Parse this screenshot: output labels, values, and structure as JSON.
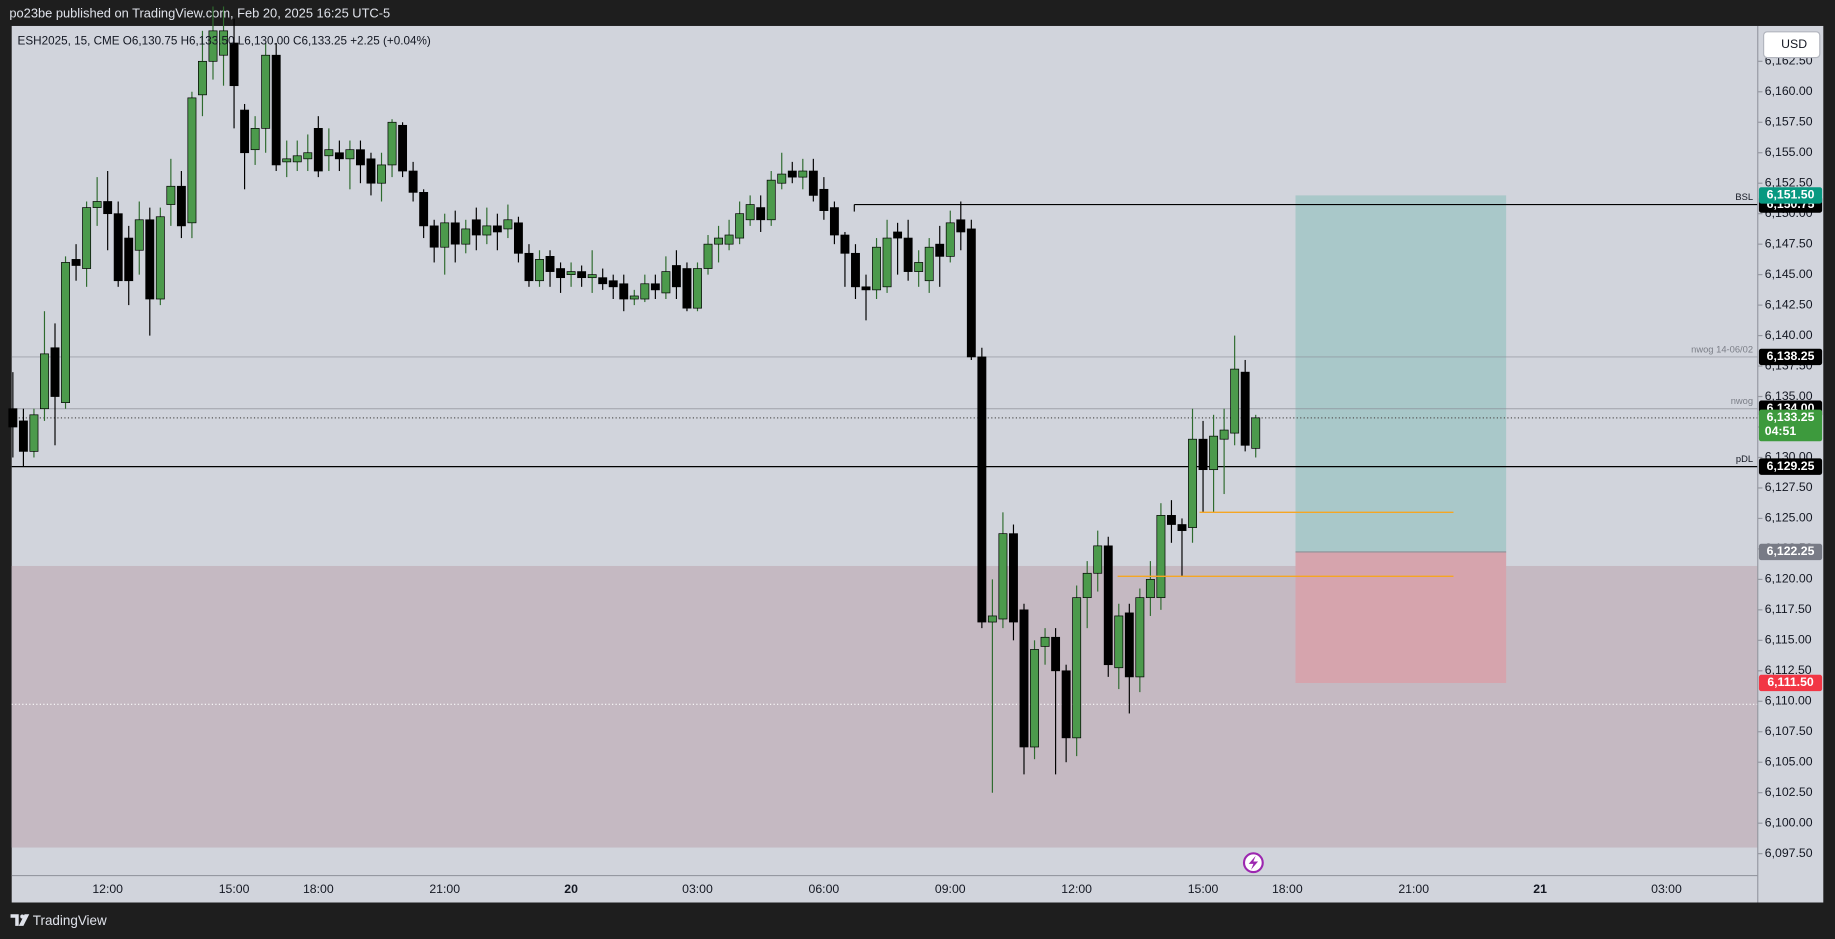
{
  "chart_data": {
    "type": "candlestick",
    "header": "po23be published on TradingView.com, Feb 20, 2025 16:25 UTC-5",
    "legend": "ESH2025, 15, CME  O6,130.75  H6,133.50  L6,130.00  C6,133.25  +2.25 (+0.04%)",
    "currency": "USD",
    "footer": "TradingView",
    "up_color": "#4c9a4c",
    "down_color": "#000000",
    "categories": [
      null,
      null,
      null,
      null,
      null,
      null,
      null,
      null,
      null,
      "12:00",
      null,
      null,
      null,
      null,
      null,
      null,
      null,
      null,
      null,
      null,
      null,
      "15:00",
      null,
      null,
      null,
      null,
      null,
      null,
      null,
      "18:00",
      null,
      null,
      null,
      null,
      null,
      null,
      null,
      null,
      null,
      null,
      null,
      "21:00",
      null,
      null,
      null,
      null,
      null,
      null,
      null,
      null,
      null,
      null,
      null,
      "20",
      null,
      null,
      null,
      null,
      null,
      null,
      null,
      null,
      null,
      null,
      null,
      "03:00",
      null,
      null,
      null,
      null,
      null,
      null,
      null,
      null,
      null,
      null,
      null,
      "06:00",
      null,
      null,
      null,
      null,
      null,
      null,
      null,
      null,
      null,
      null,
      null,
      "09:00",
      null,
      null,
      null,
      null,
      null,
      null,
      null,
      null,
      null,
      null,
      null,
      "12:00",
      null,
      null,
      null,
      null,
      null,
      null,
      null,
      null,
      null,
      null,
      null,
      "15:00",
      null,
      null,
      null,
      null,
      null,
      null,
      null,
      "18:00",
      null,
      null,
      null,
      null,
      null,
      null,
      null,
      null,
      null,
      null,
      null,
      "21:00",
      null,
      null,
      null,
      null,
      null,
      null,
      null,
      null,
      null,
      null,
      null,
      "21",
      null,
      null,
      null,
      null,
      null,
      null,
      null,
      null,
      null,
      null,
      null,
      "03:00",
      null,
      null,
      null,
      null,
      null,
      null,
      null,
      null
    ],
    "open": [
      6134,
      6133,
      6130.5,
      6134,
      6139,
      6134.5,
      6146.25,
      6145.5,
      6150.5,
      6151,
      6150,
      6148,
      6147,
      6149.5,
      6143,
      6150.75,
      6152.25,
      6149.25,
      6159.75,
      6162.5,
      6163,
      6164,
      6158.5,
      6155.25,
      6157,
      6163,
      6154.25,
      6154.25,
      6154.5,
      6157,
      6154.75,
      6155,
      6154.5,
      6155.25,
      6154.5,
      6152.5,
      6154,
      6157.25,
      6153.5,
      6151.75,
      6149,
      6147.25,
      6149.25,
      6147.5,
      6149.5,
      6148.25,
      6149,
      6148.75,
      6149.25,
      6146.75,
      6144.5,
      6146.5,
      6145.5,
      6145,
      6145.25,
      6144.75,
      6144.75,
      6144.5,
      6144.25,
      6143,
      6143,
      6144.25,
      6143.5,
      6145.75,
      6145.5,
      6142.25,
      6145.5,
      6147.5,
      6147.5,
      6148,
      6149.5,
      6150.5,
      6149.5,
      6152.5,
      6153.5,
      6153,
      6153.5,
      6152,
      6150.5,
      6148.25,
      6146.75,
      6144,
      6143.75,
      6144,
      6148.5,
      6148,
      6145.25,
      6144.5,
      6147.5,
      6146.5,
      6149.5,
      6148.75,
      6138.25,
      6116.5,
      6116.75,
      6123.75,
      6117.5,
      6106.25,
      6114.5,
      6115.25,
      6112.5,
      6107,
      6118.5,
      6120.5,
      6122.75,
      6112.75,
      6117.25,
      6112,
      6118.5,
      6118.5,
      6125.25,
      6124.5,
      6124.25,
      6131.5,
      6129,
      6131.5,
      6132,
      6137,
      6130.75,
      null,
      null,
      null,
      null,
      null,
      null,
      null,
      null,
      null,
      null,
      null,
      null,
      null,
      null,
      null,
      null,
      null,
      null,
      null,
      null,
      null,
      null,
      null,
      null,
      null,
      null,
      null,
      null,
      null,
      null,
      null,
      null,
      null,
      null,
      null,
      null,
      null,
      null,
      null,
      null,
      null,
      null,
      null,
      null,
      null,
      null,
      null
    ],
    "high": [
      6137,
      6134,
      6134,
      6142,
      6141,
      6146.5,
      6147.5,
      6151,
      6153,
      6153.5,
      6151,
      6149,
      6151,
      6150.5,
      6150.5,
      6154.5,
      6153.5,
      6160,
      6165,
      6167,
      6167,
      6166,
      6159,
      6158,
      6164,
      6164,
      6156,
      6156,
      6156.5,
      6158,
      6157,
      6156,
      6156,
      6156,
      6155,
      6155,
      6157.75,
      6157.5,
      6154.25,
      6152,
      6149.5,
      6150,
      6150.25,
      6149.5,
      6150.5,
      6150.5,
      6150,
      6150.75,
      6149.75,
      6147.5,
      6147,
      6147,
      6146,
      6146,
      6145.75,
      6147,
      6145.5,
      6145,
      6145,
      6143.75,
      6145,
      6145,
      6146.5,
      6147,
      6146,
      6146,
      6148.25,
      6149,
      6149.5,
      6151,
      6151.5,
      6151.5,
      6153.5,
      6155,
      6154.25,
      6154.5,
      6154.5,
      6153,
      6151,
      6148.5,
      6147.5,
      6145,
      6148,
      6149.5,
      6149.25,
      6149.5,
      6147,
      6148,
      6149,
      6150.25,
      6151,
      6149.5,
      6139,
      6120,
      6125.5,
      6124.5,
      6118,
      6115,
      6116,
      6116,
      6113,
      6119.5,
      6121.5,
      6124,
      6123.5,
      6118,
      6118,
      6119.25,
      6121.5,
      6126.25,
      6126.5,
      6125,
      6134,
      6133,
      6133.5,
      6134,
      6140,
      6138,
      6133.5,
      null,
      null,
      null,
      null,
      null,
      null,
      null,
      null,
      null,
      null,
      null,
      null,
      null,
      null,
      null,
      null,
      null,
      null,
      null,
      null,
      null,
      null,
      null,
      null,
      null,
      null,
      null,
      null,
      null,
      null,
      null,
      null,
      null,
      null,
      null,
      null,
      null,
      null,
      null,
      null,
      null,
      null,
      null,
      null,
      null,
      null,
      null
    ],
    "low": [
      6130,
      6129.25,
      6130,
      6133,
      6131,
      6134,
      6144.5,
      6144,
      6149,
      6147,
      6144,
      6142.5,
      6145,
      6140,
      6142.5,
      6149,
      6148,
      6148,
      6158,
      6161,
      6160.5,
      6157,
      6152,
      6154,
      6155,
      6153.5,
      6153,
      6153.5,
      6153.5,
      6153,
      6153.5,
      6153.5,
      6152,
      6152.5,
      6151.5,
      6151,
      6153,
      6153,
      6151,
      6148,
      6146,
      6145,
      6146,
      6146.75,
      6147,
      6147.5,
      6147,
      6148,
      6146,
      6144,
      6144,
      6144,
      6143.5,
      6144,
      6144,
      6143.5,
      6143.75,
      6143,
      6142,
      6142.5,
      6142.75,
      6143,
      6143,
      6143,
      6142,
      6142,
      6145,
      6146,
      6147,
      6147.5,
      6149,
      6148.5,
      6149,
      6152,
      6152.5,
      6152,
      6151,
      6149.5,
      6147.5,
      6144,
      6143,
      6141.25,
      6143,
      6143.5,
      6145,
      6144.5,
      6144,
      6143.5,
      6144,
      6146,
      6147,
      6138,
      6116,
      6102.5,
      6116,
      6115,
      6104,
      6105.25,
      6113,
      6104,
      6105,
      6105.5,
      6116,
      6119,
      6112,
      6111,
      6109,
      6110.75,
      6117,
      6117.5,
      6123,
      6120.25,
      6123,
      6125.5,
      6125.5,
      6127,
      6131,
      6130.5,
      6130,
      null,
      null,
      null,
      null,
      null,
      null,
      null,
      null,
      null,
      null,
      null,
      null,
      null,
      null,
      null,
      null,
      null,
      null,
      null,
      null,
      null,
      null,
      null,
      null,
      null,
      null,
      null,
      null,
      null,
      null,
      null,
      null,
      null,
      null,
      null,
      null,
      null,
      null,
      null,
      null,
      null,
      null,
      null,
      null,
      null,
      null,
      null
    ],
    "close": [
      6132.5,
      6130.5,
      6133.5,
      6138.5,
      6135,
      6146,
      6145.75,
      6150.5,
      6151,
      6150,
      6144.5,
      6144.5,
      6149.5,
      6143,
      6149.75,
      6152.25,
      6149,
      6159.5,
      6162.5,
      6165,
      6165,
      6160.5,
      6155,
      6157,
      6163,
      6154,
      6154.5,
      6154.75,
      6155,
      6153.5,
      6155.25,
      6154.5,
      6155.25,
      6154,
      6152.5,
      6154,
      6157.5,
      6153.5,
      6151.75,
      6149,
      6147.25,
      6149.25,
      6147.5,
      6148.75,
      6148.25,
      6149,
      6148.5,
      6149.5,
      6146.75,
      6144.5,
      6146.25,
      6145.25,
      6144.75,
      6145.25,
      6144.75,
      6145,
      6144.25,
      6144,
      6143,
      6143.25,
      6144.25,
      6143.75,
      6145.25,
      6144,
      6142.25,
      6145.5,
      6147.5,
      6148,
      6148.25,
      6150,
      6150.75,
      6149.5,
      6152.75,
      6153.25,
      6153,
      6153.5,
      6151.5,
      6150.25,
      6148.25,
      6146.75,
      6144,
      6143.75,
      6147.25,
      6148,
      6148,
      6145.25,
      6146,
      6147.25,
      6146.5,
      6149.25,
      6148.5,
      6138.25,
      6116.5,
      6117,
      6123.75,
      6116.5,
      6106.25,
      6114.25,
      6115.25,
      6112.5,
      6107,
      6118.5,
      6120.5,
      6122.75,
      6113,
      6117,
      6112,
      6118.5,
      6120,
      6125.25,
      6124.5,
      6124,
      6131.5,
      6129,
      6131.75,
      6132.25,
      6137.25,
      6131,
      6133.25,
      null,
      null,
      null,
      null,
      null,
      null,
      null,
      null,
      null,
      null,
      null,
      null,
      null,
      null,
      null,
      null,
      null,
      null,
      null,
      null,
      null,
      null,
      null,
      null,
      null,
      null,
      null,
      null,
      null,
      null,
      null,
      null,
      null,
      null,
      null,
      null,
      null,
      null,
      null,
      null,
      null,
      null,
      null,
      null,
      null,
      null,
      null
    ],
    "ylim": [
      6095.7,
      6165.4
    ],
    "yticks": [
      {
        "value": 6097.5,
        "label": "6,097.50"
      },
      {
        "value": 6100,
        "label": "6,100.00"
      },
      {
        "value": 6102.5,
        "label": "6,102.50"
      },
      {
        "value": 6105,
        "label": "6,105.00"
      },
      {
        "value": 6107.5,
        "label": "6,107.50"
      },
      {
        "value": 6110,
        "label": "6,110.00"
      },
      {
        "value": 6112.5,
        "label": "6,112.50"
      },
      {
        "value": 6115,
        "label": "6,115.00"
      },
      {
        "value": 6117.5,
        "label": "6,117.50"
      },
      {
        "value": 6120,
        "label": "6,120.00"
      },
      {
        "value": 6122.5,
        "label": "6,122.50"
      },
      {
        "value": 6125,
        "label": "6,125.00"
      },
      {
        "value": 6127.5,
        "label": "6,127.50"
      },
      {
        "value": 6130,
        "label": "6,130.00"
      },
      {
        "value": 6132.5,
        "label": "6,132.50"
      },
      {
        "value": 6135,
        "label": "6,135.00"
      },
      {
        "value": 6137.5,
        "label": "6,137.50"
      },
      {
        "value": 6140,
        "label": "6,140.00"
      },
      {
        "value": 6142.5,
        "label": "6,142.50"
      },
      {
        "value": 6145,
        "label": "6,145.00"
      },
      {
        "value": 6147.5,
        "label": "6,147.50"
      },
      {
        "value": 6150,
        "label": "6,150.00"
      },
      {
        "value": 6152.5,
        "label": "6,152.50"
      },
      {
        "value": 6155,
        "label": "6,155.00"
      },
      {
        "value": 6157.5,
        "label": "6,157.50"
      },
      {
        "value": 6160,
        "label": "6,160.00"
      },
      {
        "value": 6162.5,
        "label": "6,162.50"
      }
    ],
    "levels": [
      {
        "name": "BSL",
        "value": 6150.75,
        "price_label": "6,150.75",
        "color": "#000000"
      },
      {
        "name": "nwog 14-06/02",
        "value": 6138.25,
        "price_label": "6,138.25",
        "color": "#8a8d96"
      },
      {
        "name": "nwog",
        "value": 6134,
        "price_label": "6,134.00",
        "color": "#8a8d96"
      },
      {
        "name": "pDL",
        "value": 6129.25,
        "price_label": "6,129.25",
        "color": "#000000"
      }
    ],
    "last_price": {
      "value": 6133.25,
      "label": "6,133.25",
      "countdown": "04:51",
      "color": "#3d9a3d"
    },
    "position": {
      "target": 6151.5,
      "target_label": "6,151.50",
      "target_color": "#089981",
      "entry": 6122.25,
      "entry_label": "6,122.25",
      "entry_color": "#787b86",
      "stop": 6111.5,
      "stop_label": "6,111.50",
      "stop_color": "#f23645"
    },
    "zone": {
      "top": 6121.1,
      "bottom": 6098
    },
    "orange_lines": [
      6125.5,
      6120.25
    ],
    "dotted_guide": 6109.75
  }
}
